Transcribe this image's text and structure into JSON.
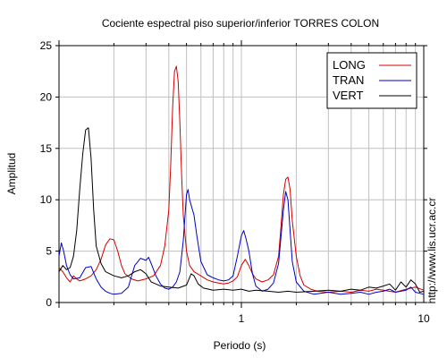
{
  "chart_data": {
    "type": "line",
    "title": "Cociente espectral piso superior/inferior  TORRES COLON",
    "xlabel": "Periodo (s)",
    "ylabel": "Amplitud",
    "x_scale": "log",
    "xlim": [
      0.1,
      10
    ],
    "ylim": [
      0,
      25
    ],
    "x_tick_labels": [
      "1",
      "10"
    ],
    "y_ticks": [
      0,
      5,
      10,
      15,
      20,
      25
    ],
    "grid": true,
    "legend_position": "top-right",
    "side_label": "http://www.lis.ucr.ac.cr",
    "series": [
      {
        "name": "LONG",
        "color": "#d40000",
        "points": [
          [
            0.1,
            3.4
          ],
          [
            0.105,
            3.0
          ],
          [
            0.11,
            2.4
          ],
          [
            0.115,
            2.0
          ],
          [
            0.12,
            2.6
          ],
          [
            0.125,
            2.3
          ],
          [
            0.13,
            2.1
          ],
          [
            0.14,
            2.3
          ],
          [
            0.15,
            2.6
          ],
          [
            0.16,
            3.2
          ],
          [
            0.17,
            4.2
          ],
          [
            0.18,
            5.6
          ],
          [
            0.19,
            6.2
          ],
          [
            0.2,
            6.1
          ],
          [
            0.21,
            5.0
          ],
          [
            0.22,
            3.6
          ],
          [
            0.23,
            2.8
          ],
          [
            0.25,
            2.3
          ],
          [
            0.27,
            2.1
          ],
          [
            0.3,
            2.3
          ],
          [
            0.33,
            2.6
          ],
          [
            0.36,
            3.6
          ],
          [
            0.38,
            5.5
          ],
          [
            0.4,
            9.0
          ],
          [
            0.41,
            13.5
          ],
          [
            0.42,
            19.0
          ],
          [
            0.43,
            22.5
          ],
          [
            0.44,
            23.0
          ],
          [
            0.45,
            21.5
          ],
          [
            0.46,
            17.5
          ],
          [
            0.47,
            12.5
          ],
          [
            0.48,
            8.5
          ],
          [
            0.5,
            5.0
          ],
          [
            0.52,
            3.6
          ],
          [
            0.55,
            3.0
          ],
          [
            0.6,
            2.6
          ],
          [
            0.65,
            2.2
          ],
          [
            0.7,
            2.0
          ],
          [
            0.75,
            1.9
          ],
          [
            0.8,
            1.8
          ],
          [
            0.85,
            1.9
          ],
          [
            0.9,
            2.1
          ],
          [
            0.95,
            2.5
          ],
          [
            1.0,
            3.6
          ],
          [
            1.05,
            4.2
          ],
          [
            1.1,
            3.6
          ],
          [
            1.15,
            2.8
          ],
          [
            1.2,
            2.3
          ],
          [
            1.3,
            2.0
          ],
          [
            1.4,
            2.2
          ],
          [
            1.5,
            2.7
          ],
          [
            1.6,
            4.5
          ],
          [
            1.65,
            7.5
          ],
          [
            1.7,
            10.5
          ],
          [
            1.75,
            12.0
          ],
          [
            1.8,
            12.2
          ],
          [
            1.85,
            11.0
          ],
          [
            1.9,
            8.0
          ],
          [
            2.0,
            4.5
          ],
          [
            2.1,
            2.6
          ],
          [
            2.2,
            1.7
          ],
          [
            2.4,
            1.3
          ],
          [
            2.6,
            1.1
          ],
          [
            3.0,
            1.0
          ],
          [
            3.5,
            1.1
          ],
          [
            4.0,
            1.0
          ],
          [
            4.5,
            1.2
          ],
          [
            5.0,
            1.1
          ],
          [
            5.5,
            1.3
          ],
          [
            6.0,
            1.2
          ],
          [
            7.0,
            1.0
          ],
          [
            8.0,
            1.3
          ],
          [
            9.0,
            1.5
          ],
          [
            10.0,
            1.2
          ]
        ]
      },
      {
        "name": "TRAN",
        "color": "#0000c8",
        "points": [
          [
            0.1,
            4.5
          ],
          [
            0.103,
            5.8
          ],
          [
            0.106,
            5.0
          ],
          [
            0.11,
            3.6
          ],
          [
            0.115,
            2.7
          ],
          [
            0.12,
            2.3
          ],
          [
            0.13,
            2.4
          ],
          [
            0.14,
            3.4
          ],
          [
            0.15,
            3.5
          ],
          [
            0.16,
            2.3
          ],
          [
            0.17,
            1.5
          ],
          [
            0.18,
            1.1
          ],
          [
            0.19,
            0.9
          ],
          [
            0.2,
            0.8
          ],
          [
            0.22,
            0.9
          ],
          [
            0.24,
            1.5
          ],
          [
            0.25,
            2.6
          ],
          [
            0.26,
            3.6
          ],
          [
            0.28,
            4.3
          ],
          [
            0.3,
            4.1
          ],
          [
            0.31,
            4.4
          ],
          [
            0.32,
            3.8
          ],
          [
            0.34,
            2.6
          ],
          [
            0.36,
            1.8
          ],
          [
            0.38,
            1.4
          ],
          [
            0.4,
            1.3
          ],
          [
            0.42,
            1.5
          ],
          [
            0.44,
            2.0
          ],
          [
            0.46,
            3.0
          ],
          [
            0.48,
            6.0
          ],
          [
            0.5,
            10.5
          ],
          [
            0.51,
            11.0
          ],
          [
            0.52,
            10.0
          ],
          [
            0.55,
            8.5
          ],
          [
            0.57,
            6.5
          ],
          [
            0.6,
            4.0
          ],
          [
            0.65,
            2.7
          ],
          [
            0.7,
            2.4
          ],
          [
            0.75,
            2.2
          ],
          [
            0.8,
            2.1
          ],
          [
            0.85,
            2.2
          ],
          [
            0.9,
            2.6
          ],
          [
            0.95,
            4.5
          ],
          [
            1.0,
            6.5
          ],
          [
            1.03,
            7.0
          ],
          [
            1.06,
            6.2
          ],
          [
            1.1,
            5.0
          ],
          [
            1.15,
            2.8
          ],
          [
            1.2,
            1.6
          ],
          [
            1.3,
            1.1
          ],
          [
            1.4,
            1.3
          ],
          [
            1.5,
            1.9
          ],
          [
            1.6,
            3.8
          ],
          [
            1.65,
            6.5
          ],
          [
            1.7,
            9.0
          ],
          [
            1.75,
            10.8
          ],
          [
            1.8,
            10.0
          ],
          [
            1.85,
            7.0
          ],
          [
            1.9,
            4.0
          ],
          [
            2.0,
            2.0
          ],
          [
            2.2,
            1.1
          ],
          [
            2.5,
            0.8
          ],
          [
            3.0,
            1.0
          ],
          [
            3.5,
            0.8
          ],
          [
            4.0,
            0.9
          ],
          [
            4.5,
            1.0
          ],
          [
            5.0,
            0.8
          ],
          [
            5.5,
            1.0
          ],
          [
            6.0,
            1.1
          ],
          [
            6.5,
            1.3
          ],
          [
            7.0,
            1.0
          ],
          [
            8.0,
            1.2
          ],
          [
            8.5,
            1.5
          ],
          [
            9.0,
            1.0
          ],
          [
            10.0,
            0.8
          ]
        ]
      },
      {
        "name": "VERT",
        "color": "#000000",
        "points": [
          [
            0.1,
            3.0
          ],
          [
            0.105,
            3.6
          ],
          [
            0.11,
            3.2
          ],
          [
            0.115,
            3.4
          ],
          [
            0.12,
            4.5
          ],
          [
            0.125,
            7.0
          ],
          [
            0.13,
            11.0
          ],
          [
            0.135,
            14.5
          ],
          [
            0.14,
            16.8
          ],
          [
            0.145,
            17.0
          ],
          [
            0.15,
            14.0
          ],
          [
            0.155,
            9.0
          ],
          [
            0.16,
            5.5
          ],
          [
            0.17,
            3.8
          ],
          [
            0.18,
            3.0
          ],
          [
            0.2,
            2.6
          ],
          [
            0.22,
            2.4
          ],
          [
            0.24,
            2.6
          ],
          [
            0.26,
            3.0
          ],
          [
            0.28,
            3.2
          ],
          [
            0.3,
            2.8
          ],
          [
            0.32,
            2.0
          ],
          [
            0.34,
            1.8
          ],
          [
            0.36,
            1.6
          ],
          [
            0.4,
            1.5
          ],
          [
            0.45,
            1.4
          ],
          [
            0.5,
            1.7
          ],
          [
            0.53,
            2.8
          ],
          [
            0.55,
            2.6
          ],
          [
            0.58,
            1.8
          ],
          [
            0.62,
            1.4
          ],
          [
            0.7,
            1.2
          ],
          [
            0.8,
            1.3
          ],
          [
            0.9,
            1.2
          ],
          [
            1.0,
            1.3
          ],
          [
            1.1,
            1.1
          ],
          [
            1.2,
            1.2
          ],
          [
            1.4,
            1.1
          ],
          [
            1.6,
            1.0
          ],
          [
            1.8,
            1.1
          ],
          [
            2.0,
            1.0
          ],
          [
            2.5,
            1.1
          ],
          [
            3.0,
            1.2
          ],
          [
            3.5,
            1.1
          ],
          [
            4.0,
            1.3
          ],
          [
            4.5,
            1.2
          ],
          [
            5.0,
            1.5
          ],
          [
            5.5,
            1.4
          ],
          [
            6.0,
            1.6
          ],
          [
            6.5,
            1.8
          ],
          [
            7.0,
            1.2
          ],
          [
            7.5,
            2.0
          ],
          [
            8.0,
            1.5
          ],
          [
            8.5,
            2.2
          ],
          [
            9.0,
            1.8
          ],
          [
            9.5,
            1.0
          ],
          [
            10.0,
            1.1
          ]
        ]
      }
    ]
  }
}
